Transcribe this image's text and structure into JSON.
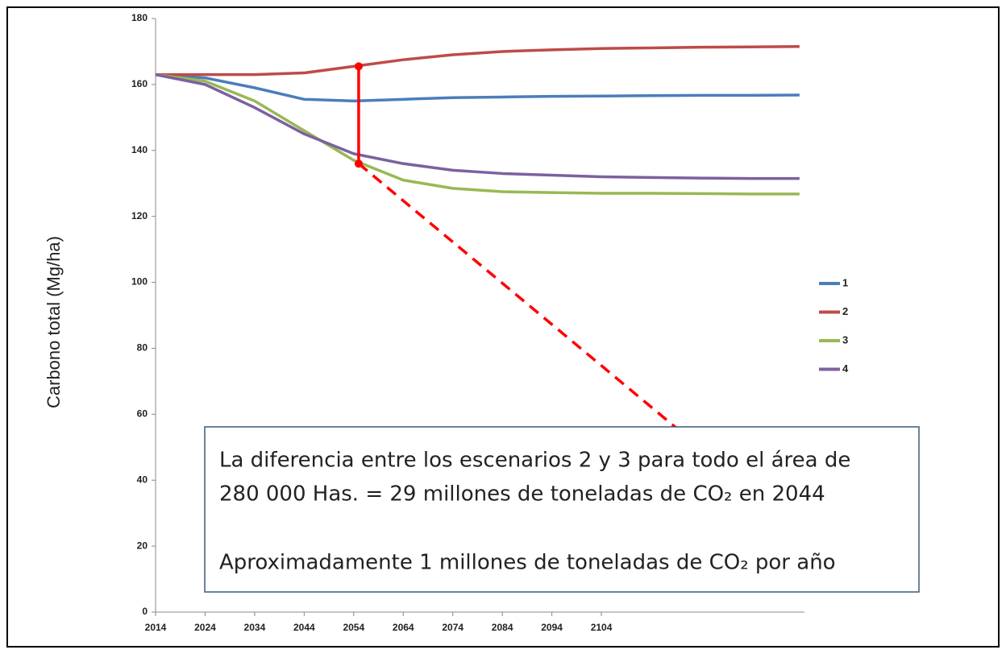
{
  "chart_data": {
    "type": "line",
    "y_label": "Carbono total (Mg/ha)",
    "x": [
      2014,
      2024,
      2034,
      2044,
      2054,
      2064,
      2074,
      2084,
      2094,
      2104,
      2114,
      2124,
      2134,
      2144
    ],
    "series": [
      {
        "name": "1",
        "color": "#4a7ebb",
        "values": [
          163,
          162,
          159,
          155.5,
          155,
          155.5,
          156,
          156.2,
          156.4,
          156.5,
          156.6,
          156.7,
          156.7,
          156.8
        ]
      },
      {
        "name": "2",
        "color": "#be4b48",
        "values": [
          163,
          163,
          163,
          163.5,
          165.5,
          167.5,
          169,
          170,
          170.5,
          170.9,
          171.1,
          171.3,
          171.4,
          171.5
        ]
      },
      {
        "name": "3",
        "color": "#98b954",
        "values": [
          163,
          161,
          155,
          146,
          137,
          131,
          128.5,
          127.5,
          127.2,
          127,
          127,
          126.9,
          126.8,
          126.8
        ]
      },
      {
        "name": "4",
        "color": "#7d60a0",
        "values": [
          163,
          160,
          153,
          145,
          139,
          136,
          134,
          133,
          132.5,
          132,
          131.8,
          131.6,
          131.5,
          131.5
        ]
      }
    ],
    "xlim": [
      2014,
      2145
    ],
    "xticks": [
      2014,
      2024,
      2034,
      2044,
      2054,
      2064,
      2074,
      2084,
      2094,
      2104
    ],
    "ylim": [
      0,
      180
    ],
    "yticks": [
      0,
      20,
      40,
      60,
      80,
      100,
      120,
      140,
      160,
      180
    ],
    "marker_line": {
      "x": 2055,
      "values": [
        136,
        165.5
      ],
      "color": "#ff0000"
    },
    "trend_line": {
      "x": [
        2055,
        2119
      ],
      "values": [
        136,
        56
      ],
      "color": "#ff0000"
    },
    "annotation": [
      "La diferencia entre los escenarios 2 y 3 para todo el área de",
      "280 000 Has. = 29 millones de toneladas de CO₂ en 2044",
      "Aproximadamente 1 millones de toneladas de CO₂ por año"
    ]
  }
}
